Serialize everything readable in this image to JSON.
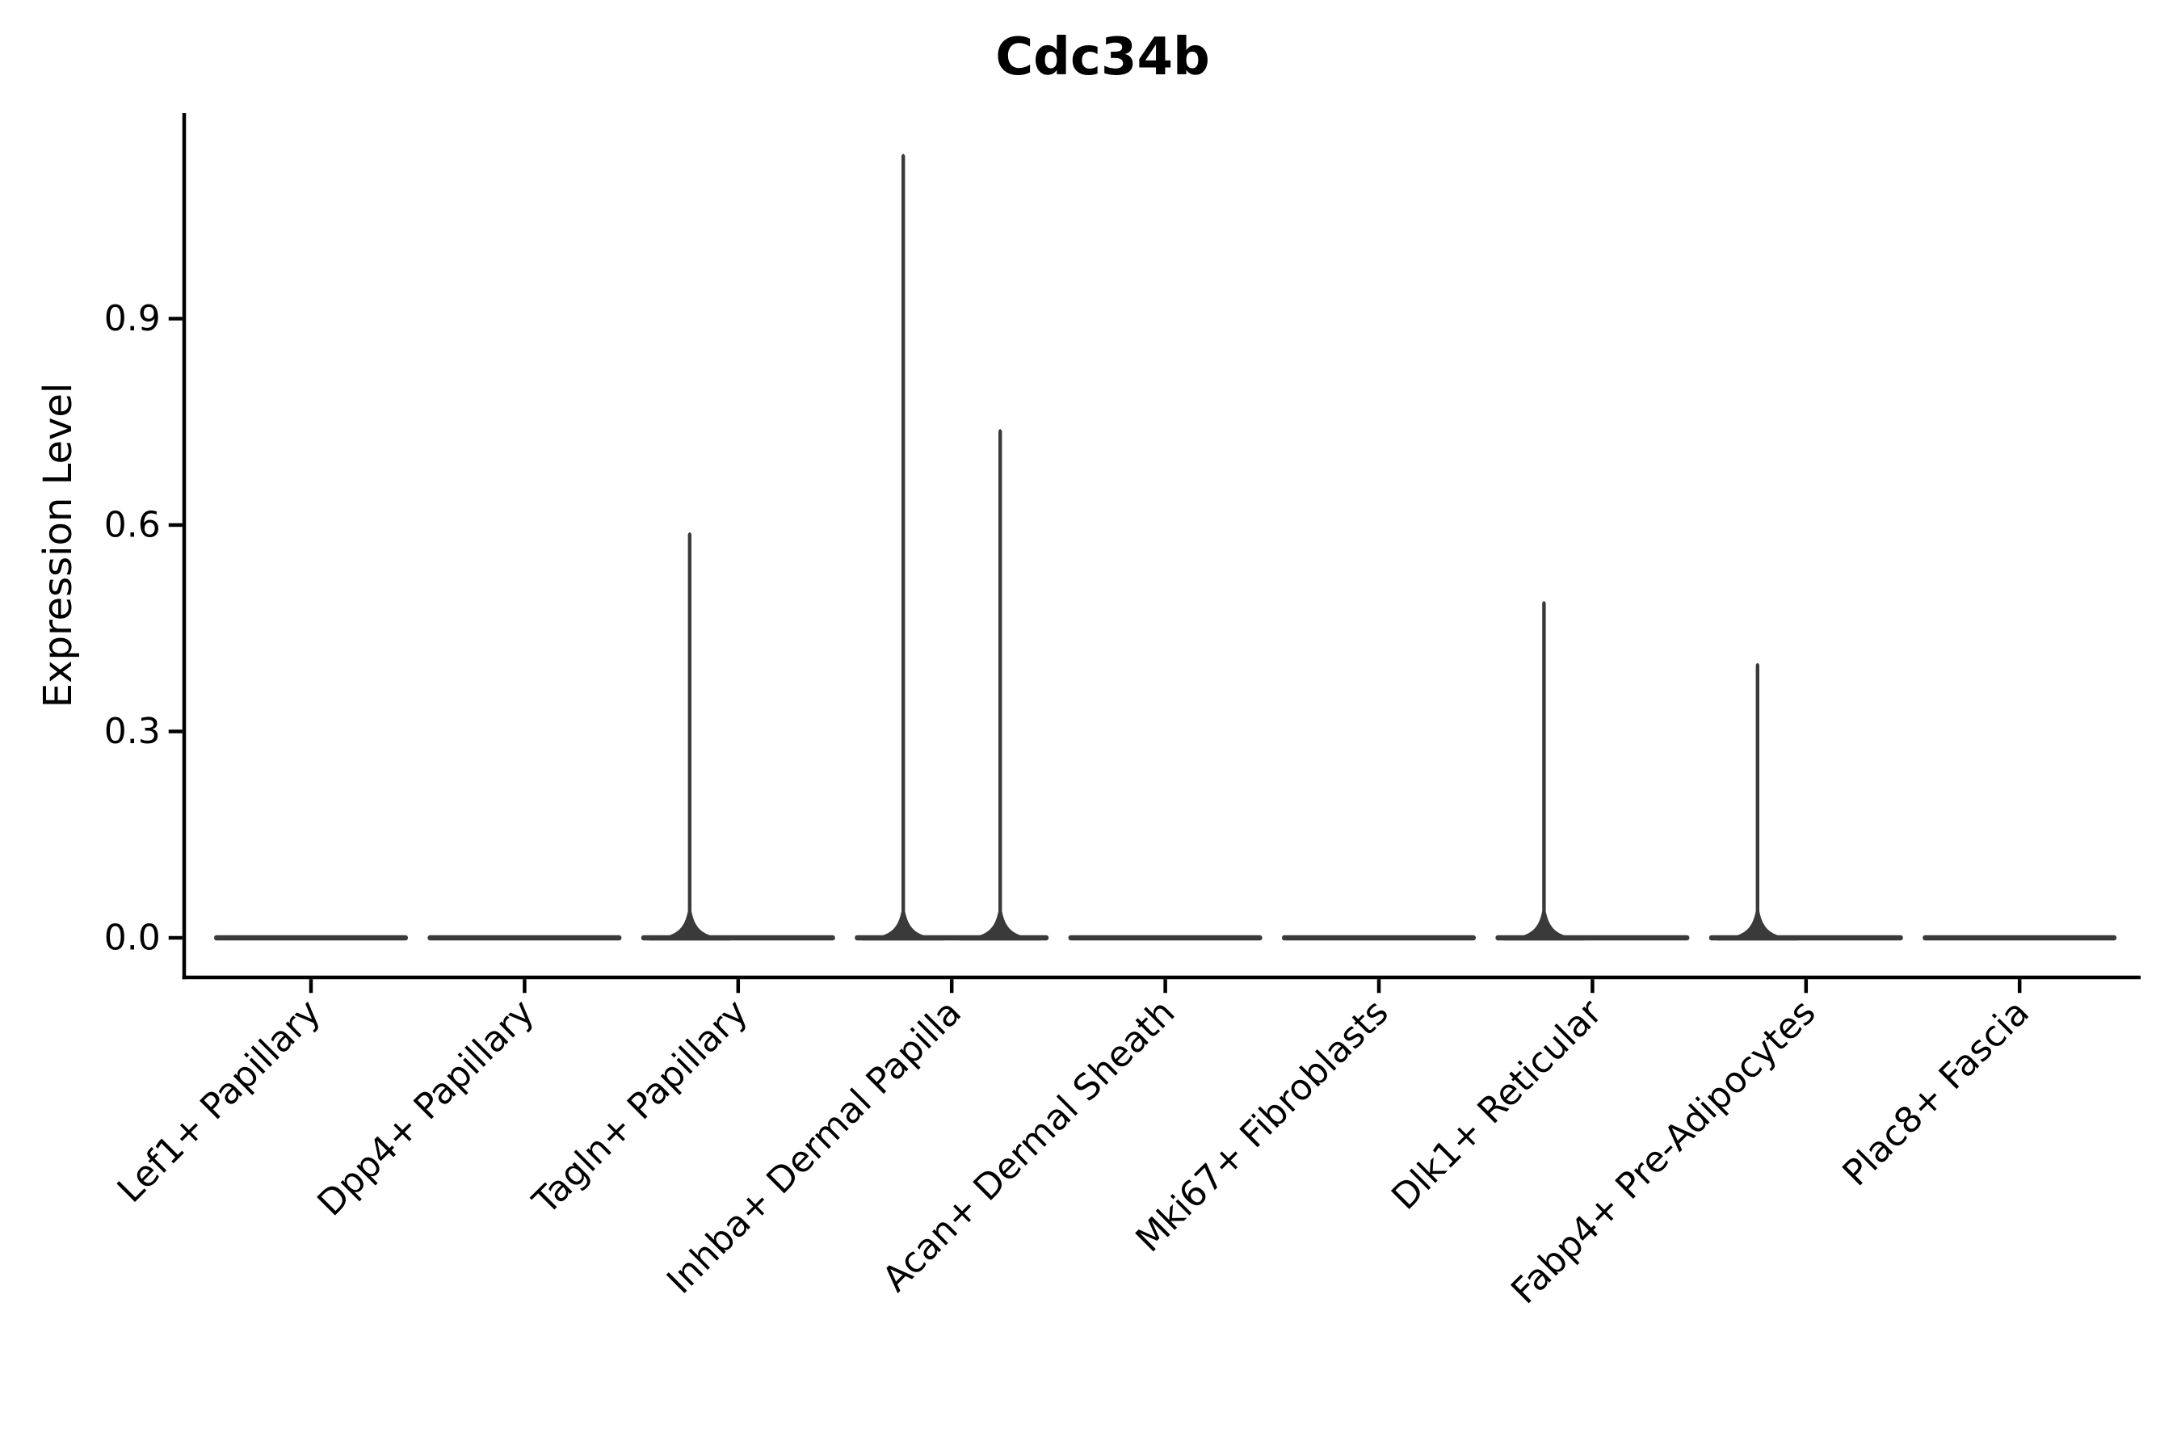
{
  "figure": {
    "title": "Cdc34b",
    "background": "#ffffff"
  },
  "chart_data": {
    "type": "violin",
    "title": "Cdc34b",
    "xlabel": "",
    "ylabel": "Expression Level",
    "categories": [
      "Lef1+ Papillary",
      "Dpp4+ Papillary",
      "Tagln+ Papillary",
      "Inhba+ Dermal Papilla",
      "Acan+ Dermal Sheath",
      "Mki67+ Fibroblasts",
      "Dlk1+ Reticular",
      "Fabp4+ Pre-Adipocytes",
      "Plac8+ Fascia"
    ],
    "yticks": [
      "0.0",
      "0.3",
      "0.6",
      "0.9"
    ],
    "ytick_values": [
      0.0,
      0.3,
      0.6,
      0.9
    ],
    "ylim": [
      0.0,
      1.2
    ],
    "grid": false,
    "legend": "none",
    "violins": [
      {
        "category": "Lef1+ Papillary",
        "baseline": 0.0,
        "spikes": []
      },
      {
        "category": "Dpp4+ Papillary",
        "baseline": 0.0,
        "spikes": []
      },
      {
        "category": "Tagln+ Papillary",
        "baseline": 0.0,
        "spikes": [
          {
            "side": "left",
            "max": 0.59
          }
        ]
      },
      {
        "category": "Inhba+ Dermal Papilla",
        "baseline": 0.0,
        "spikes": [
          {
            "side": "left",
            "max": 1.14
          },
          {
            "side": "right",
            "max": 0.74
          }
        ]
      },
      {
        "category": "Acan+ Dermal Sheath",
        "baseline": 0.0,
        "spikes": []
      },
      {
        "category": "Mki67+ Fibroblasts",
        "baseline": 0.0,
        "spikes": []
      },
      {
        "category": "Dlk1+ Reticular",
        "baseline": 0.0,
        "spikes": [
          {
            "side": "left",
            "max": 0.49
          }
        ]
      },
      {
        "category": "Fabp4+ Pre-Adipocytes",
        "baseline": 0.0,
        "spikes": [
          {
            "side": "left",
            "max": 0.4
          }
        ]
      },
      {
        "category": "Plac8+ Fascia",
        "baseline": 0.0,
        "spikes": []
      }
    ],
    "colors": {
      "violin": "#3a3a3a",
      "axis": "#000000",
      "text": "#000000",
      "background": "#ffffff"
    }
  }
}
